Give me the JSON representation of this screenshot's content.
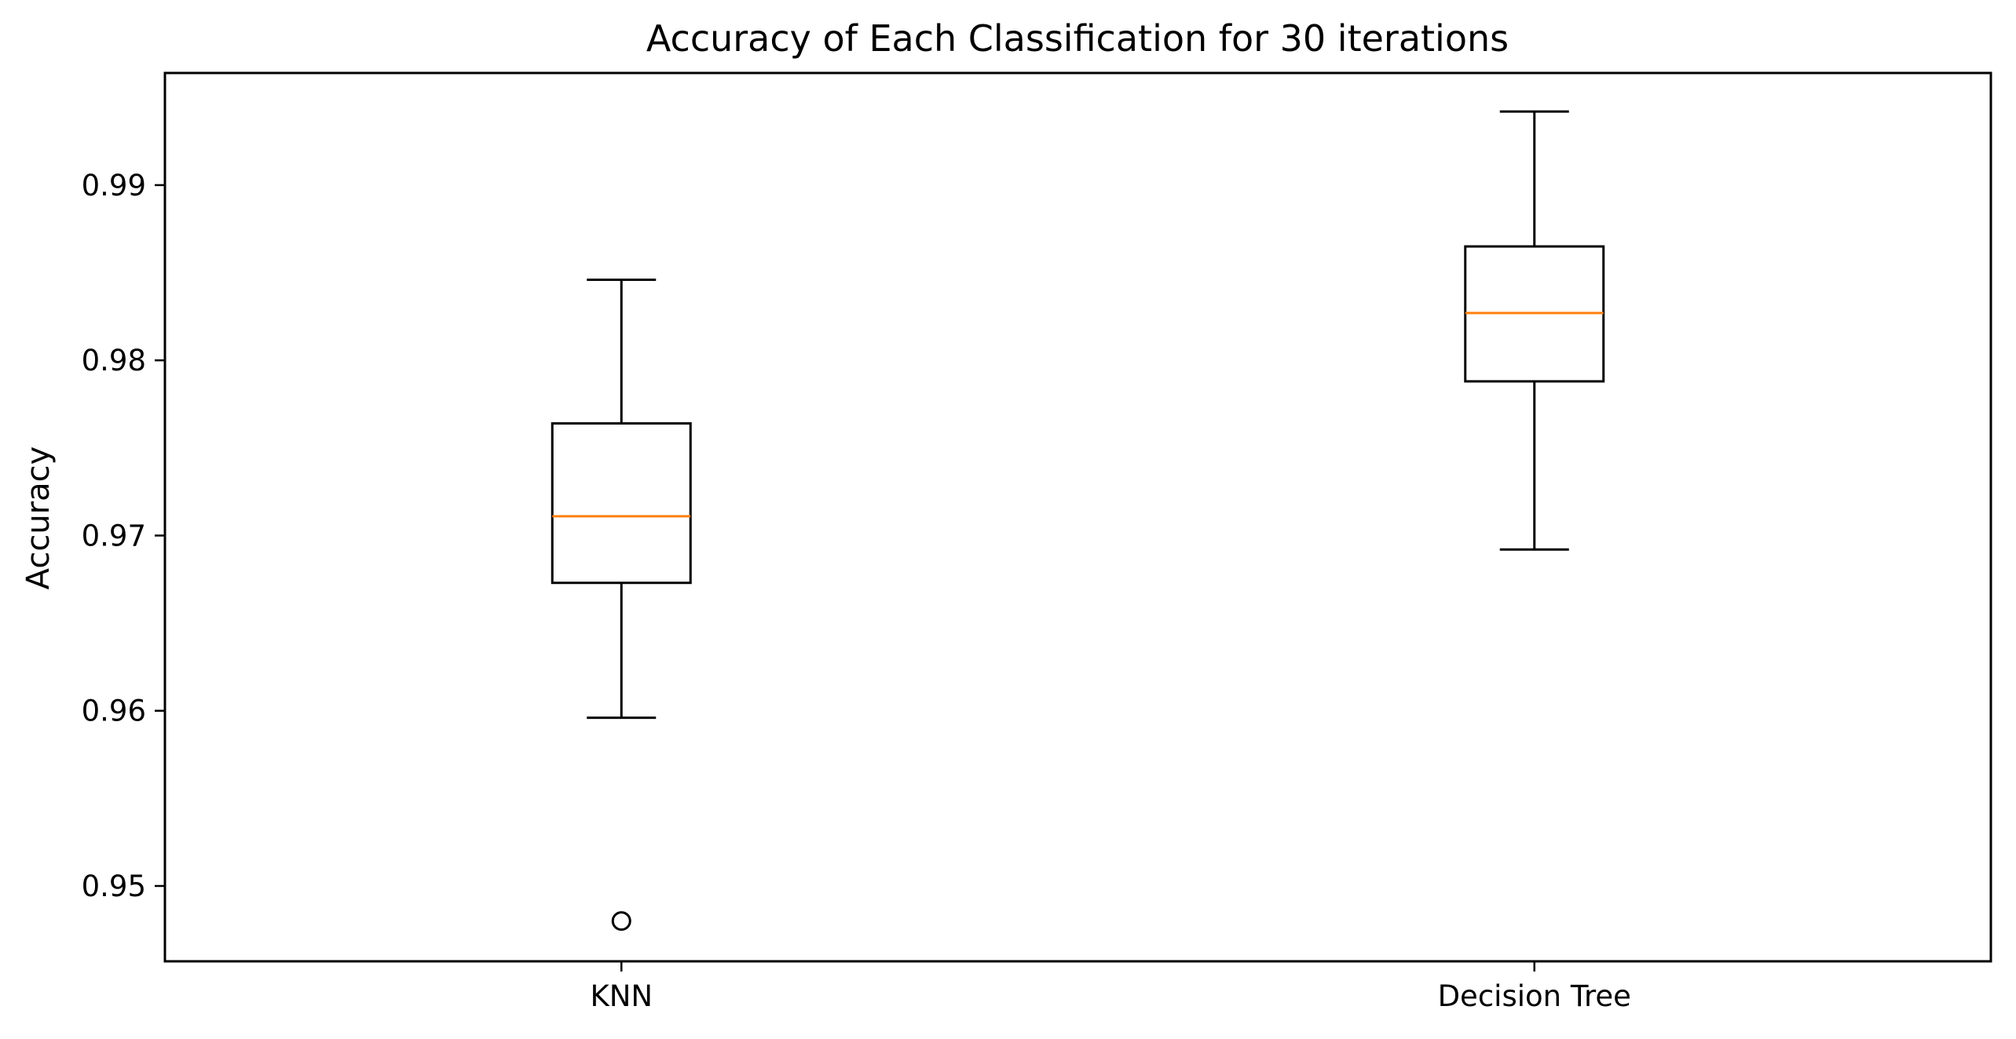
{
  "chart_data": {
    "type": "box",
    "title": "Accuracy of Each Classification for 30 iterations",
    "xlabel": "",
    "ylabel": "Accuracy",
    "categories": [
      "KNN",
      "Decision Tree"
    ],
    "ylim": [
      0.9457,
      0.9964
    ],
    "yticks": [
      0.95,
      0.96,
      0.97,
      0.98,
      0.99
    ],
    "ytick_labels": [
      "0.95",
      "0.96",
      "0.97",
      "0.98",
      "0.99"
    ],
    "grid": false,
    "boxes": [
      {
        "name": "KNN",
        "whisker_low": 0.9596,
        "q1": 0.9673,
        "median": 0.9711,
        "q3": 0.9764,
        "whisker_high": 0.9846,
        "outliers": [
          0.948
        ]
      },
      {
        "name": "Decision Tree",
        "whisker_low": 0.9692,
        "q1": 0.9788,
        "median": 0.9827,
        "q3": 0.9865,
        "whisker_high": 0.9942,
        "outliers": []
      }
    ],
    "colors": {
      "box": "#000000",
      "median": "#ff7f0e",
      "axes": "#000000"
    }
  }
}
